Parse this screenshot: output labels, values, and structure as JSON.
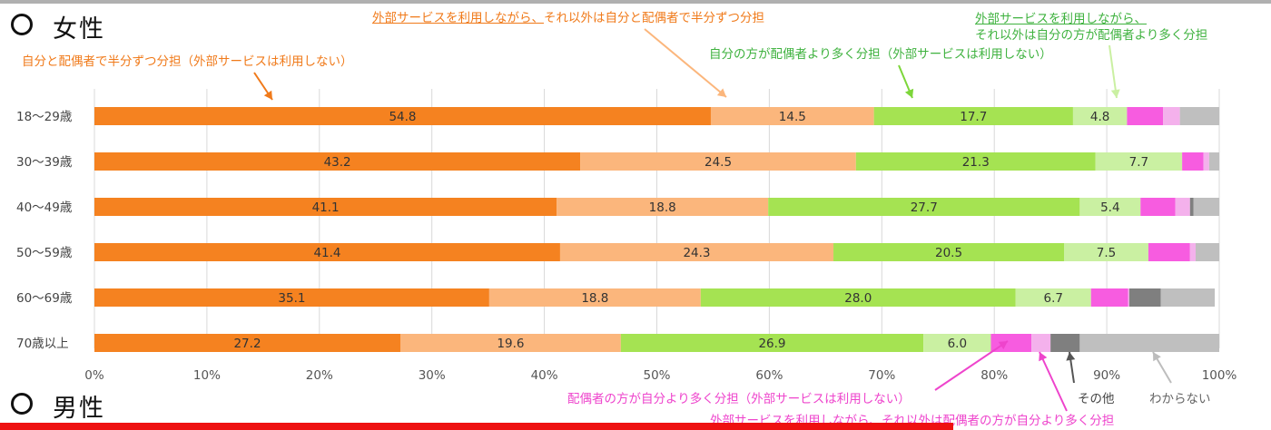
{
  "sections": {
    "female": "女性",
    "male": "男性"
  },
  "annotations": {
    "half_no_service": "自分と配偶者で半分ずつ分担（外部サービスは利用しない）",
    "half_with_service": "外部サービスを利用しながら、それ以外は自分と配偶者で半分ずつ分担",
    "self_more_with_service_1": "外部サービスを利用しながら、",
    "self_more_with_service_2": "それ以外は自分の方が配偶者より多く分担",
    "self_more_no_service": "自分の方が配偶者より多く分担（外部サービスは利用しない）",
    "spouse_more_no_service": "配偶者の方が自分より多く分担（外部サービスは利用しない）",
    "spouse_more_with_service": "外部サービスを利用しながら、それ以外は配偶者の方が自分より多く分担",
    "other": "その他",
    "unknown": "わからない"
  },
  "colors": {
    "half_no_service": "#f58220",
    "half_with_service": "#fbb67c",
    "self_more_no_service": "#a5e352",
    "self_more_with_service": "#caf0a2",
    "spouse_more_no_service": "#f75ce0",
    "spouse_more_with_service": "#f4b1ec",
    "other": "#7f7f7f",
    "unknown": "#bfbfbf"
  },
  "chart_data": {
    "type": "bar",
    "orientation": "horizontal",
    "stacked": true,
    "categories": [
      "18〜29歳",
      "30〜39歳",
      "40〜49歳",
      "50〜59歳",
      "60〜69歳",
      "70歳以上"
    ],
    "x_ticks": [
      "0%",
      "10%",
      "20%",
      "30%",
      "40%",
      "50%",
      "60%",
      "70%",
      "80%",
      "90%",
      "100%"
    ],
    "xlim": [
      0,
      100
    ],
    "grid": true,
    "series": [
      {
        "key": "half_no_service",
        "values": [
          54.8,
          43.2,
          41.1,
          41.4,
          35.1,
          27.2
        ],
        "labeled": true
      },
      {
        "key": "half_with_service",
        "values": [
          14.5,
          24.5,
          18.8,
          24.3,
          18.8,
          19.6
        ],
        "labeled": true
      },
      {
        "key": "self_more_no_service",
        "values": [
          17.7,
          21.3,
          27.7,
          20.5,
          28.0,
          26.9
        ],
        "labeled": true
      },
      {
        "key": "self_more_with_service",
        "values": [
          4.8,
          7.7,
          5.4,
          7.5,
          6.7,
          6.0
        ],
        "labeled": true
      },
      {
        "key": "spouse_more_no_service",
        "values": [
          3.2,
          1.9,
          3.1,
          3.7,
          3.3,
          3.6
        ],
        "labeled": false
      },
      {
        "key": "spouse_more_with_service",
        "values": [
          1.5,
          0.5,
          1.3,
          0.5,
          0.1,
          1.7
        ],
        "labeled": false
      },
      {
        "key": "other",
        "values": [
          0.0,
          0.0,
          0.3,
          0.0,
          2.8,
          2.6
        ],
        "labeled": false
      },
      {
        "key": "unknown",
        "values": [
          3.5,
          0.9,
          2.3,
          2.1,
          4.8,
          12.4
        ],
        "labeled": false
      }
    ]
  }
}
